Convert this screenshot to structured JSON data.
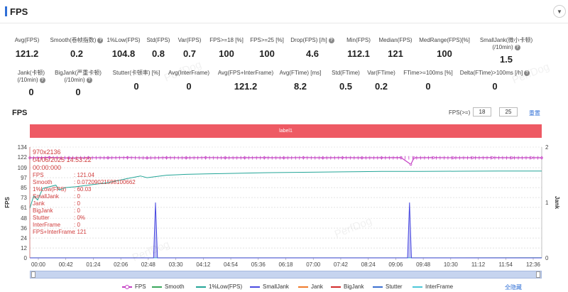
{
  "header": {
    "title": "FPS",
    "collapse_icon": "chevron-down-icon"
  },
  "metrics_row1": [
    {
      "label": "Avg(FPS)",
      "value": "121.2",
      "help": false
    },
    {
      "label": "Smooth(卷帧指数)",
      "value": "0.2",
      "help": true
    },
    {
      "label": "1%Low(FPS)",
      "value": "104.8",
      "help": false
    },
    {
      "label": "Std(FPS)",
      "value": "0.8",
      "help": false
    },
    {
      "label": "Var(FPS)",
      "value": "0.7",
      "help": false
    },
    {
      "label": "FPS>=18 [%]",
      "value": "100",
      "help": false
    },
    {
      "label": "FPS>=25 [%]",
      "value": "100",
      "help": false
    },
    {
      "label": "Drop(FPS) [/h]",
      "value": "4.6",
      "help": true
    },
    {
      "label": "Min(FPS)",
      "value": "112.1",
      "help": false
    },
    {
      "label": "Median(FPS)",
      "value": "121",
      "help": false
    },
    {
      "label": "MedRange(FPS)[%]",
      "value": "100",
      "help": false
    },
    {
      "label": "SmallJank(微小卡顿)",
      "label2": "(/10min)",
      "value": "1.5",
      "help": true
    }
  ],
  "metrics_row2": [
    {
      "label": "Jank(卡顿)",
      "label2": "(/10min)",
      "value": "0",
      "help": true
    },
    {
      "label": "BigJank(严重卡顿)",
      "label2": "(/10min)",
      "value": "0",
      "help": true
    },
    {
      "label": "Stutter(卡顿率) [%]",
      "value": "0",
      "help": false
    },
    {
      "label": "Avg(InterFrame)",
      "value": "0",
      "help": false
    },
    {
      "label": "Avg(FPS+InterFrame)",
      "value": "121.2",
      "help": false
    },
    {
      "label": "Avg(FTime) [ms]",
      "value": "8.2",
      "help": false
    },
    {
      "label": "Std(FTime)",
      "value": "0.5",
      "help": false
    },
    {
      "label": "Var(FTime)",
      "value": "0.2",
      "help": false
    },
    {
      "label": "FTime>=100ms [%]",
      "value": "0",
      "help": false
    },
    {
      "label": "Delta(FTime)>100ms [/h]",
      "value": "0",
      "help": true
    }
  ],
  "section": {
    "title": "FPS",
    "fps_threshold_label": "FPS(>=)",
    "fps_threshold_1": "18",
    "fps_threshold_2": "25",
    "reset_label": "重置"
  },
  "label_band": "label1",
  "tooltip": {
    "resolution": "970x2136",
    "date": "04/06/2025 14:53:22",
    "time": "00:00:000",
    "rows": [
      {
        "k": "FPS",
        "v": ": 121.04"
      },
      {
        "k": "Smooth",
        "v": ": 0.07209021598100662"
      },
      {
        "k": "1%Low(FPS)",
        "v": ": 60.03"
      },
      {
        "k": "SmallJank",
        "v": ": 0"
      },
      {
        "k": "Jank",
        "v": ": 0"
      },
      {
        "k": "BigJank",
        "v": ": 0"
      },
      {
        "k": "Stutter",
        "v": ": 0%"
      },
      {
        "k": "InterFrame",
        "v": ": 0"
      },
      {
        "k": "FPS+InterFrame",
        "v": ": 121"
      }
    ]
  },
  "watermark": "PerfDog",
  "legend": {
    "items": [
      {
        "name": "FPS",
        "color": "#c43fc4",
        "dot": true
      },
      {
        "name": "Smooth",
        "color": "#3aa65a",
        "dot": false
      },
      {
        "name": "1%Low(FPS)",
        "color": "#23a597",
        "dot": false
      },
      {
        "name": "SmallJank",
        "color": "#4a4ae0",
        "dot": false
      },
      {
        "name": "Jank",
        "color": "#f07a2a",
        "dot": false
      },
      {
        "name": "BigJank",
        "color": "#d22a2a",
        "dot": false
      },
      {
        "name": "Stutter",
        "color": "#3b6fd0",
        "dot": false
      },
      {
        "name": "InterFrame",
        "color": "#4cc7d8",
        "dot": false
      }
    ],
    "hide_all": "全隐藏"
  },
  "chart_data": {
    "type": "line",
    "ylabel": "FPS",
    "y2label": "Jank",
    "y_ticks": [
      0,
      12,
      24,
      36,
      48,
      61,
      73,
      85,
      97,
      109,
      122,
      134
    ],
    "ylim": [
      0,
      134
    ],
    "y2_ticks": [
      0,
      1,
      2
    ],
    "y2lim": [
      0,
      2
    ],
    "x_ticks": [
      "00:00",
      "00:42",
      "01:24",
      "02:06",
      "02:48",
      "03:30",
      "04:12",
      "04:54",
      "05:36",
      "06:18",
      "07:00",
      "07:42",
      "08:24",
      "09:06",
      "09:48",
      "10:30",
      "11:12",
      "11:54",
      "12:36"
    ],
    "x_range_seconds": [
      0,
      786
    ],
    "series": [
      {
        "name": "FPS",
        "color": "#c43fc4",
        "points": [
          [
            0,
            121
          ],
          [
            30,
            121.5
          ],
          [
            60,
            120.8
          ],
          [
            90,
            121.2
          ],
          [
            120,
            121
          ],
          [
            150,
            121.4
          ],
          [
            180,
            120.9
          ],
          [
            210,
            121.2
          ],
          [
            240,
            121
          ],
          [
            270,
            121.3
          ],
          [
            300,
            121
          ],
          [
            330,
            121.1
          ],
          [
            360,
            121.2
          ],
          [
            390,
            121
          ],
          [
            420,
            121.3
          ],
          [
            450,
            121
          ],
          [
            480,
            121.2
          ],
          [
            510,
            121
          ],
          [
            540,
            121.1
          ],
          [
            570,
            121.2
          ],
          [
            585,
            113
          ],
          [
            590,
            121
          ],
          [
            620,
            121.2
          ],
          [
            650,
            121
          ],
          [
            680,
            121.1
          ],
          [
            710,
            121.2
          ],
          [
            740,
            121
          ],
          [
            770,
            121.1
          ],
          [
            786,
            121
          ]
        ]
      },
      {
        "name": "1%Low(FPS)",
        "color": "#23a597",
        "points": [
          [
            0,
            60
          ],
          [
            6,
            75
          ],
          [
            12,
            70
          ],
          [
            20,
            84
          ],
          [
            30,
            86
          ],
          [
            40,
            88
          ],
          [
            45,
            82
          ],
          [
            55,
            85
          ],
          [
            70,
            86
          ],
          [
            90,
            88
          ],
          [
            120,
            91
          ],
          [
            150,
            96
          ],
          [
            170,
            99
          ],
          [
            180,
            97
          ],
          [
            210,
            100
          ],
          [
            240,
            101
          ],
          [
            270,
            101.5
          ],
          [
            300,
            102
          ],
          [
            360,
            103
          ],
          [
            420,
            103.5
          ],
          [
            480,
            104
          ],
          [
            540,
            104.5
          ],
          [
            600,
            104.5
          ],
          [
            660,
            104.8
          ],
          [
            720,
            105
          ],
          [
            786,
            105
          ]
        ]
      },
      {
        "name": "SmallJank",
        "color": "#4a4ae0",
        "axis": "right",
        "points": [
          [
            0,
            0
          ],
          [
            190,
            0
          ],
          [
            193,
            1
          ],
          [
            196,
            0
          ],
          [
            580,
            0
          ],
          [
            583,
            1
          ],
          [
            586,
            0
          ],
          [
            786,
            0
          ]
        ]
      },
      {
        "name": "Smooth",
        "color": "#3aa65a",
        "points": [
          [
            0,
            0.07
          ],
          [
            786,
            0.2
          ]
        ]
      },
      {
        "name": "Jank",
        "color": "#f07a2a",
        "points": [
          [
            0,
            0
          ],
          [
            786,
            0
          ]
        ]
      },
      {
        "name": "BigJank",
        "color": "#d22a2a",
        "points": [
          [
            0,
            0
          ],
          [
            786,
            0
          ]
        ]
      },
      {
        "name": "Stutter",
        "color": "#3b6fd0",
        "points": [
          [
            0,
            0
          ],
          [
            786,
            0
          ]
        ]
      },
      {
        "name": "InterFrame",
        "color": "#4cc7d8",
        "points": [
          [
            0,
            0
          ],
          [
            786,
            0
          ]
        ]
      }
    ]
  }
}
